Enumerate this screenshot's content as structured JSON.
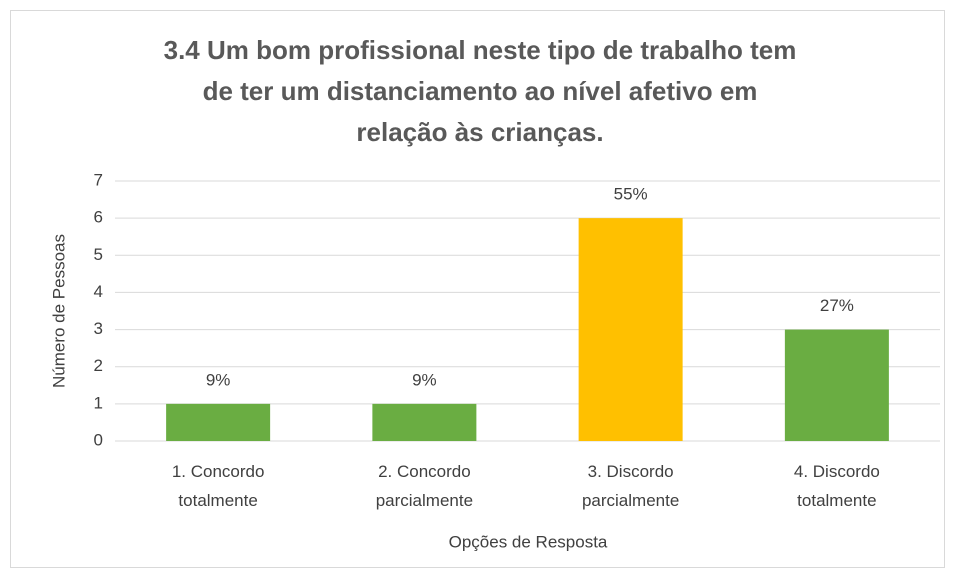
{
  "chart_data": {
    "type": "bar",
    "title": "3.4 Um bom profissional neste tipo de trabalho tem de ter um distanciamento ao nível afetivo em relação às crianças.",
    "x_label": "Opções de Resposta",
    "y_label": "Número de Pessoas",
    "categories": [
      "1. Concordo totalmente",
      "2. Concordo parcialmente",
      "3. Discordo parcialmente",
      "4. Discordo totalmente"
    ],
    "values": [
      1,
      1,
      6,
      3
    ],
    "percentage_labels": [
      "9%",
      "9%",
      "55%",
      "27%"
    ],
    "colors": [
      "#6aad42",
      "#6aad42",
      "#ffc000",
      "#6aad42"
    ],
    "ylim": [
      0,
      7
    ],
    "yticks": [
      0,
      1,
      2,
      3,
      4,
      5,
      6,
      7
    ],
    "grid": true
  }
}
